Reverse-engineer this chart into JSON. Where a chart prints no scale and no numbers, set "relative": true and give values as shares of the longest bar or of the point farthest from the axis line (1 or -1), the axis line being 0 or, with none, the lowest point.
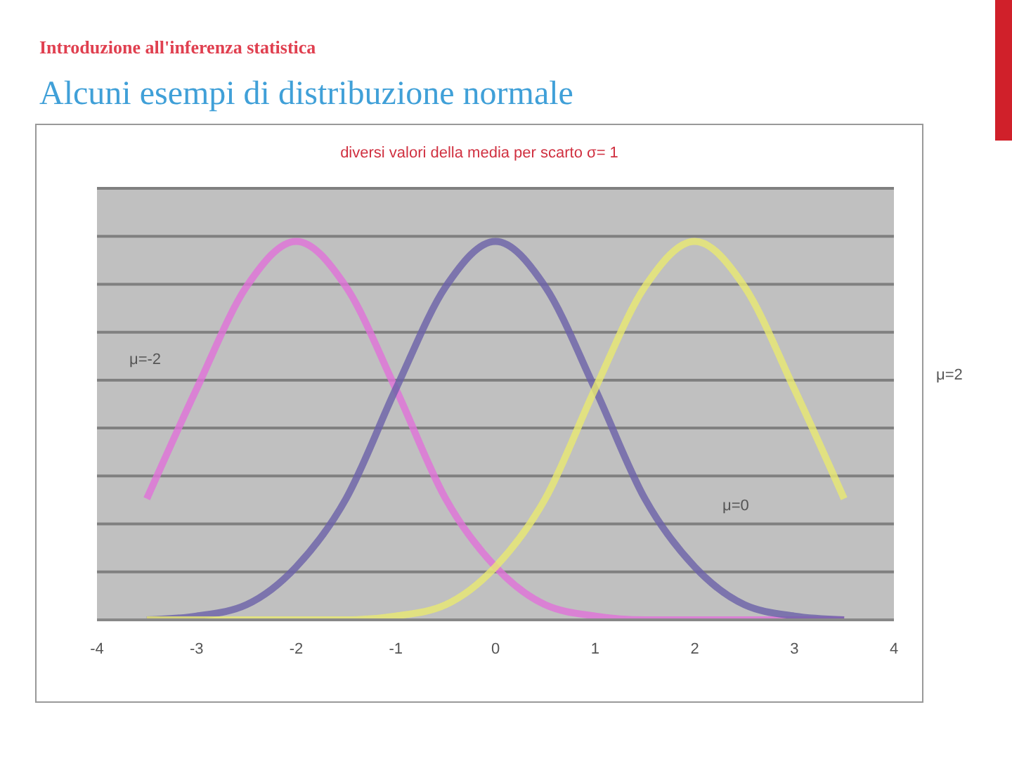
{
  "chart_data": {
    "type": "line",
    "title": "diversi valori della media per scarto σ= 1",
    "subtitle": "Alcuni esempi di distribuzione normale",
    "annotations": [
      "Introduzione all'inferenza statistica",
      "μ=-2",
      "μ=0",
      "μ=2"
    ],
    "x": [
      -3.5,
      -3,
      -2.5,
      -2,
      -1.5,
      -1,
      -0.5,
      0,
      0.5,
      1,
      1.5,
      2,
      2.5,
      3,
      3.5
    ],
    "series": [
      {
        "color": "#e070d8",
        "values": [
          0.32,
          0.61,
          0.88,
          1,
          0.88,
          0.61,
          0.32,
          0.14,
          0.04,
          0.01,
          0,
          0,
          0,
          0,
          0
        ]
      },
      {
        "color": "#6a60a8",
        "values": [
          0,
          0.01,
          0.04,
          0.14,
          0.32,
          0.61,
          0.88,
          1,
          0.88,
          0.61,
          0.32,
          0.14,
          0.04,
          0.01,
          0
        ]
      },
      {
        "color": "#e8e870",
        "values": [
          0,
          0,
          0,
          0,
          0,
          0.01,
          0.04,
          0.14,
          0.32,
          0.61,
          0.88,
          1,
          0.88,
          0.61,
          0.32
        ]
      }
    ],
    "relative": true,
    "xlim": [
      -4,
      4
    ],
    "xticks": [
      -4,
      -3,
      -2,
      -1,
      0,
      1,
      2,
      3,
      4
    ],
    "grid": "y",
    "marker": "none",
    "line_style": "solid"
  }
}
